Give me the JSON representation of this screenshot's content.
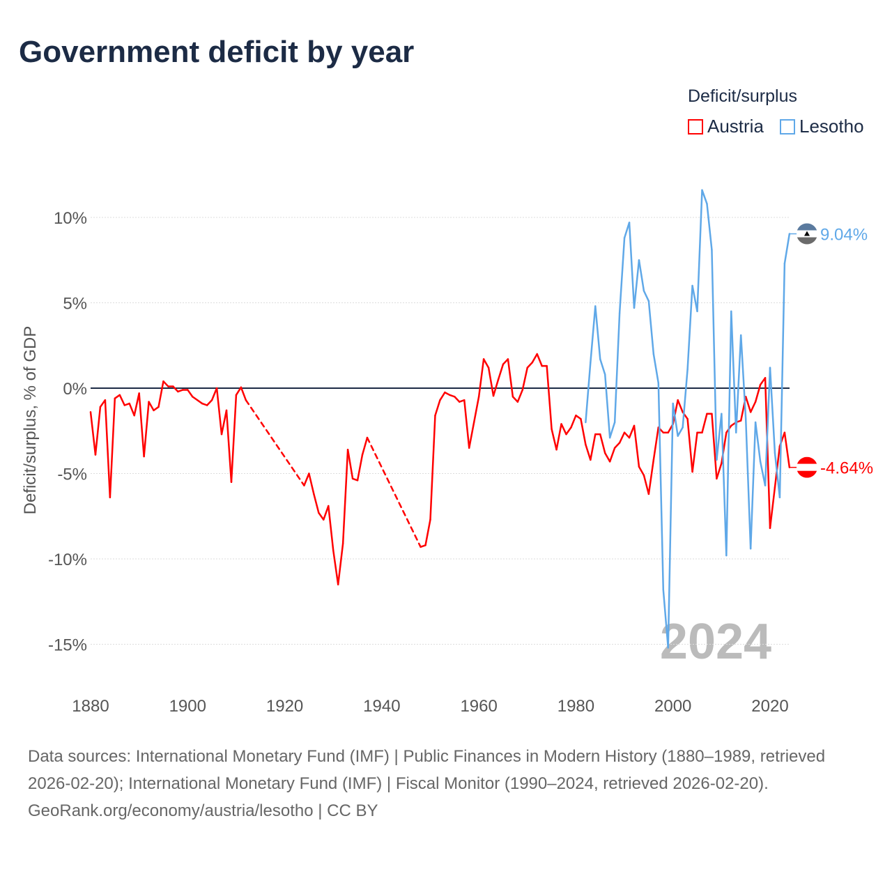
{
  "chart_data": {
    "type": "line",
    "title": "Government deficit by year",
    "ylabel": "Deficit/surplus, % of GDP",
    "xlabel": "",
    "xlim": [
      1880,
      2024
    ],
    "ylim": [
      -15,
      10
    ],
    "x_ticks": [
      "1880",
      "1900",
      "1920",
      "1940",
      "1960",
      "1980",
      "2000",
      "2020"
    ],
    "y_ticks": [
      {
        "v": 10,
        "label": "10%"
      },
      {
        "v": 5,
        "label": "5%"
      },
      {
        "v": 0,
        "label": "0%"
      },
      {
        "v": -5,
        "label": "-5%"
      },
      {
        "v": -10,
        "label": "-10%"
      },
      {
        "v": -15,
        "label": "-15%"
      }
    ],
    "legend_title": "Deficit/surplus",
    "year_label": "2024",
    "series": [
      {
        "name": "Austria",
        "color": "#ff0000",
        "end_label": "-4.64%",
        "x": [
          1880,
          1881,
          1882,
          1883,
          1884,
          1885,
          1886,
          1887,
          1888,
          1889,
          1890,
          1891,
          1892,
          1893,
          1894,
          1895,
          1896,
          1897,
          1898,
          1899,
          1900,
          1901,
          1902,
          1903,
          1904,
          1905,
          1906,
          1907,
          1908,
          1909,
          1910,
          1911,
          1912,
          1924,
          1925,
          1926,
          1927,
          1928,
          1929,
          1930,
          1931,
          1932,
          1933,
          1934,
          1935,
          1936,
          1937,
          1948,
          1949,
          1950,
          1951,
          1952,
          1953,
          1954,
          1955,
          1956,
          1957,
          1958,
          1959,
          1960,
          1961,
          1962,
          1963,
          1964,
          1965,
          1966,
          1967,
          1968,
          1969,
          1970,
          1971,
          1972,
          1973,
          1974,
          1975,
          1976,
          1977,
          1978,
          1979,
          1980,
          1981,
          1982,
          1983,
          1984,
          1985,
          1986,
          1987,
          1988,
          1989,
          1990,
          1991,
          1992,
          1993,
          1994,
          1995,
          1996,
          1997,
          1998,
          1999,
          2000,
          2001,
          2002,
          2003,
          2004,
          2005,
          2006,
          2007,
          2008,
          2009,
          2010,
          2011,
          2012,
          2013,
          2014,
          2015,
          2016,
          2017,
          2018,
          2019,
          2020,
          2021,
          2022,
          2023,
          2024
        ],
        "values": [
          -1.4,
          -3.9,
          -1.1,
          -0.7,
          -6.4,
          -0.6,
          -0.4,
          -1.0,
          -0.9,
          -1.6,
          -0.3,
          -4.0,
          -0.8,
          -1.3,
          -1.1,
          0.4,
          0.1,
          0.1,
          -0.2,
          -0.1,
          -0.1,
          -0.5,
          -0.7,
          -0.9,
          -1.0,
          -0.7,
          0.0,
          -2.7,
          -1.3,
          -5.5,
          -0.4,
          0.05,
          -0.7,
          -5.7,
          -5.0,
          -6.2,
          -7.3,
          -7.7,
          -6.9,
          -9.5,
          -11.5,
          -9.1,
          -3.6,
          -5.3,
          -5.4,
          -3.9,
          -2.9,
          -9.3,
          -9.2,
          -7.7,
          -1.6,
          -0.7,
          -0.25,
          -0.4,
          -0.5,
          -0.8,
          -0.7,
          -3.5,
          -2.0,
          -0.5,
          1.7,
          1.2,
          -0.45,
          0.5,
          1.4,
          1.7,
          -0.5,
          -0.8,
          -0.1,
          1.2,
          1.5,
          2.0,
          1.3,
          1.3,
          -2.4,
          -3.6,
          -2.1,
          -2.7,
          -2.3,
          -1.6,
          -1.8,
          -3.3,
          -4.2,
          -2.7,
          -2.7,
          -3.8,
          -4.3,
          -3.5,
          -3.2,
          -2.6,
          -2.9,
          -2.2,
          -4.6,
          -5.1,
          -6.2,
          -4.2,
          -2.3,
          -2.6,
          -2.6,
          -2.1,
          -0.7,
          -1.4,
          -1.8,
          -4.9,
          -2.6,
          -2.6,
          -1.5,
          -1.5,
          -5.3,
          -4.4,
          -2.6,
          -2.2,
          -2.0,
          -1.9,
          -0.5,
          -1.4,
          -0.8,
          0.2,
          0.6,
          -8.2,
          -5.8,
          -3.4,
          -2.6,
          -4.64
        ]
      },
      {
        "name": "Lesotho",
        "color": "#5fa8e8",
        "end_label": "9.04%",
        "x": [
          1982,
          1983,
          1984,
          1985,
          1986,
          1987,
          1988,
          1989,
          1990,
          1991,
          1992,
          1993,
          1994,
          1995,
          1996,
          1997,
          1998,
          1999,
          2000,
          2001,
          2002,
          2003,
          2004,
          2005,
          2006,
          2007,
          2008,
          2009,
          2010,
          2011,
          2012,
          2013,
          2014,
          2015,
          2016,
          2017,
          2018,
          2019,
          2020,
          2021,
          2022,
          2023,
          2024
        ],
        "values": [
          -2.0,
          1.5,
          4.8,
          1.7,
          0.8,
          -2.9,
          -2.0,
          4.4,
          8.8,
          9.7,
          4.7,
          7.5,
          5.7,
          5.1,
          2.0,
          0.3,
          -11.8,
          -15.2,
          -0.9,
          -2.8,
          -2.3,
          1.1,
          6.0,
          4.5,
          11.6,
          10.8,
          8.1,
          -4.2,
          -1.5,
          -9.8,
          4.5,
          -2.6,
          3.1,
          -1.8,
          -9.4,
          -2.0,
          -4.3,
          -5.7,
          1.2,
          -3.8,
          -6.4,
          7.3,
          9.04
        ]
      }
    ]
  },
  "source_lines": [
    "Data sources: International Monetary Fund (IMF) | Public Finances in Modern History (1880–1989, retrieved 2026-02-20); International Monetary Fund (IMF) | Fiscal Monitor (1990–2024, retrieved 2026-02-20).",
    "GeoRank.org/economy/austria/lesotho | CC BY"
  ]
}
